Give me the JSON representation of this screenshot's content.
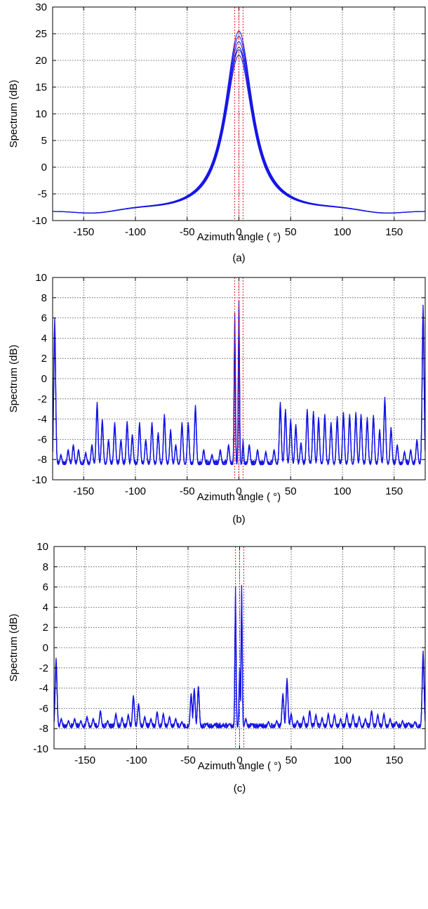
{
  "chart_data": [
    {
      "type": "line",
      "panel_label": "(a)",
      "xlabel": "Azimuth angle ( °)",
      "ylabel": "Spectrum (dB)",
      "xlim": [
        -180,
        180
      ],
      "ylim": [
        -10,
        30
      ],
      "xticks": [
        -150,
        -100,
        -50,
        0,
        50,
        100,
        150
      ],
      "yticks": [
        -10,
        -5,
        0,
        5,
        10,
        15,
        20,
        25,
        30
      ],
      "grid": true,
      "line_color": "#1414e6",
      "marker_color": "#e60000",
      "reference_lines_x": [
        -4,
        0,
        4
      ],
      "series_peaks": [
        25.5,
        24.5,
        23.5,
        22.5,
        22,
        21
      ],
      "x": [
        -180,
        -160,
        -140,
        -120,
        -100,
        -80,
        -60,
        -50,
        -40,
        -30,
        -20,
        -10,
        -5,
        0,
        5,
        10,
        20,
        30,
        40,
        50,
        60,
        80,
        100,
        120,
        140,
        160,
        180
      ],
      "y": [
        -8.5,
        -8.7,
        -9.2,
        -8.7,
        -8.3,
        -8.4,
        -8.2,
        -7.5,
        -6,
        -3,
        3,
        12,
        18,
        25,
        18,
        12,
        3,
        -3,
        -6,
        -7.5,
        -8.2,
        -8.4,
        -8.3,
        -8.7,
        -9.2,
        -8.7,
        -8.5
      ]
    },
    {
      "type": "line",
      "panel_label": "(b)",
      "xlabel": "Azimuth angle ( °)",
      "ylabel": "Spectrum (dB)",
      "xlim": [
        -180,
        180
      ],
      "ylim": [
        -10,
        10
      ],
      "xticks": [
        -150,
        -100,
        -50,
        0,
        50,
        100,
        150
      ],
      "yticks": [
        -10,
        -8,
        -6,
        -4,
        -2,
        0,
        2,
        4,
        6,
        8,
        10
      ],
      "grid": true,
      "line_color": "#1414e6",
      "marker_color": "#e60000",
      "reference_lines_x": [
        -4,
        0,
        4
      ],
      "baseline": -8.5,
      "spikes": [
        [
          -178,
          6
        ],
        [
          -172,
          -7.5
        ],
        [
          -165,
          -7
        ],
        [
          -160,
          -6.5
        ],
        [
          -155,
          -7
        ],
        [
          -148,
          -7.3
        ],
        [
          -142,
          -6.5
        ],
        [
          -137,
          -2.3
        ],
        [
          -132,
          -4
        ],
        [
          -126,
          -6
        ],
        [
          -120,
          -4.3
        ],
        [
          -114,
          -6
        ],
        [
          -108,
          -4.2
        ],
        [
          -103,
          -5.5
        ],
        [
          -96,
          -4.3
        ],
        [
          -90,
          -6
        ],
        [
          -84,
          -4.3
        ],
        [
          -78,
          -5.3
        ],
        [
          -72,
          -3.5
        ],
        [
          -66,
          -5
        ],
        [
          -61,
          -6.5
        ],
        [
          -55,
          -4.3
        ],
        [
          -49,
          -4.3
        ],
        [
          -42,
          -2.6
        ],
        [
          -34,
          -7
        ],
        [
          -26,
          -7.5
        ],
        [
          -18,
          -7
        ],
        [
          -10,
          -6.5
        ],
        [
          -4,
          6.5
        ],
        [
          0,
          7.7
        ],
        [
          4,
          -6
        ],
        [
          10,
          -6.5
        ],
        [
          18,
          -7
        ],
        [
          26,
          -7.2
        ],
        [
          34,
          -7
        ],
        [
          40,
          -2.3
        ],
        [
          45,
          -3
        ],
        [
          50,
          -4
        ],
        [
          55,
          -4.5
        ],
        [
          60,
          -6.3
        ],
        [
          66,
          -3
        ],
        [
          72,
          -3.2
        ],
        [
          77,
          -3.8
        ],
        [
          83,
          -3.5
        ],
        [
          89,
          -4.3
        ],
        [
          95,
          -3.7
        ],
        [
          101,
          -3.3
        ],
        [
          107,
          -3.5
        ],
        [
          113,
          -3.3
        ],
        [
          118,
          -3.5
        ],
        [
          124,
          -3.8
        ],
        [
          130,
          -3.6
        ],
        [
          136,
          -5
        ],
        [
          141,
          -1.8
        ],
        [
          147,
          -4.8
        ],
        [
          153,
          -6.5
        ],
        [
          160,
          -7.2
        ],
        [
          166,
          -7
        ],
        [
          172,
          -6
        ],
        [
          178,
          7.3
        ]
      ]
    },
    {
      "type": "line",
      "panel_label": "(c)",
      "xlabel": "Azimuth angle ( °)",
      "ylabel": "Spectrum (dB)",
      "xlim": [
        -180,
        180
      ],
      "ylim": [
        -10,
        10
      ],
      "xticks": [
        -150,
        -100,
        -50,
        0,
        50,
        100,
        150
      ],
      "yticks": [
        -10,
        -8,
        -6,
        -4,
        -2,
        0,
        2,
        4,
        6,
        8,
        10
      ],
      "grid": true,
      "line_color": "#1414e6",
      "marker_color": "#e60000",
      "reference_lines_x": [
        -4,
        0,
        4
      ],
      "baseline": -7.9,
      "spikes": [
        [
          -178,
          -1
        ],
        [
          -173,
          -7
        ],
        [
          -166,
          -7.2
        ],
        [
          -160,
          -7
        ],
        [
          -154,
          -7.2
        ],
        [
          -148,
          -6.8
        ],
        [
          -142,
          -7
        ],
        [
          -135,
          -6.2
        ],
        [
          -128,
          -7.2
        ],
        [
          -120,
          -6.5
        ],
        [
          -114,
          -6.9
        ],
        [
          -108,
          -6.6
        ],
        [
          -103,
          -4.7
        ],
        [
          -98,
          -5.5
        ],
        [
          -92,
          -6.8
        ],
        [
          -86,
          -7
        ],
        [
          -80,
          -6.3
        ],
        [
          -74,
          -6.5
        ],
        [
          -68,
          -6.8
        ],
        [
          -62,
          -7
        ],
        [
          -56,
          -7.3
        ],
        [
          -47,
          -4.5
        ],
        [
          -44,
          -4
        ],
        [
          -40,
          -3.8
        ],
        [
          -32,
          -7.5
        ],
        [
          -24,
          -7.6
        ],
        [
          -16,
          -7.7
        ],
        [
          -10,
          -7.5
        ],
        [
          -4,
          6
        ],
        [
          0,
          -2
        ],
        [
          2,
          6.2
        ],
        [
          6,
          -7
        ],
        [
          12,
          -7.5
        ],
        [
          20,
          -7.7
        ],
        [
          28,
          -7.3
        ],
        [
          36,
          -7.2
        ],
        [
          42,
          -4.5
        ],
        [
          46,
          -3
        ],
        [
          50,
          -6.5
        ],
        [
          56,
          -7.2
        ],
        [
          62,
          -6.8
        ],
        [
          68,
          -6.2
        ],
        [
          74,
          -6.6
        ],
        [
          80,
          -6.9
        ],
        [
          86,
          -6.5
        ],
        [
          92,
          -6.6
        ],
        [
          98,
          -7
        ],
        [
          104,
          -6.5
        ],
        [
          110,
          -6.6
        ],
        [
          116,
          -6.8
        ],
        [
          122,
          -7
        ],
        [
          128,
          -6.2
        ],
        [
          134,
          -6.6
        ],
        [
          140,
          -6.5
        ],
        [
          146,
          -7
        ],
        [
          152,
          -7.3
        ],
        [
          158,
          -7.2
        ],
        [
          164,
          -7.4
        ],
        [
          170,
          -7.3
        ],
        [
          178,
          -0.3
        ]
      ]
    }
  ]
}
